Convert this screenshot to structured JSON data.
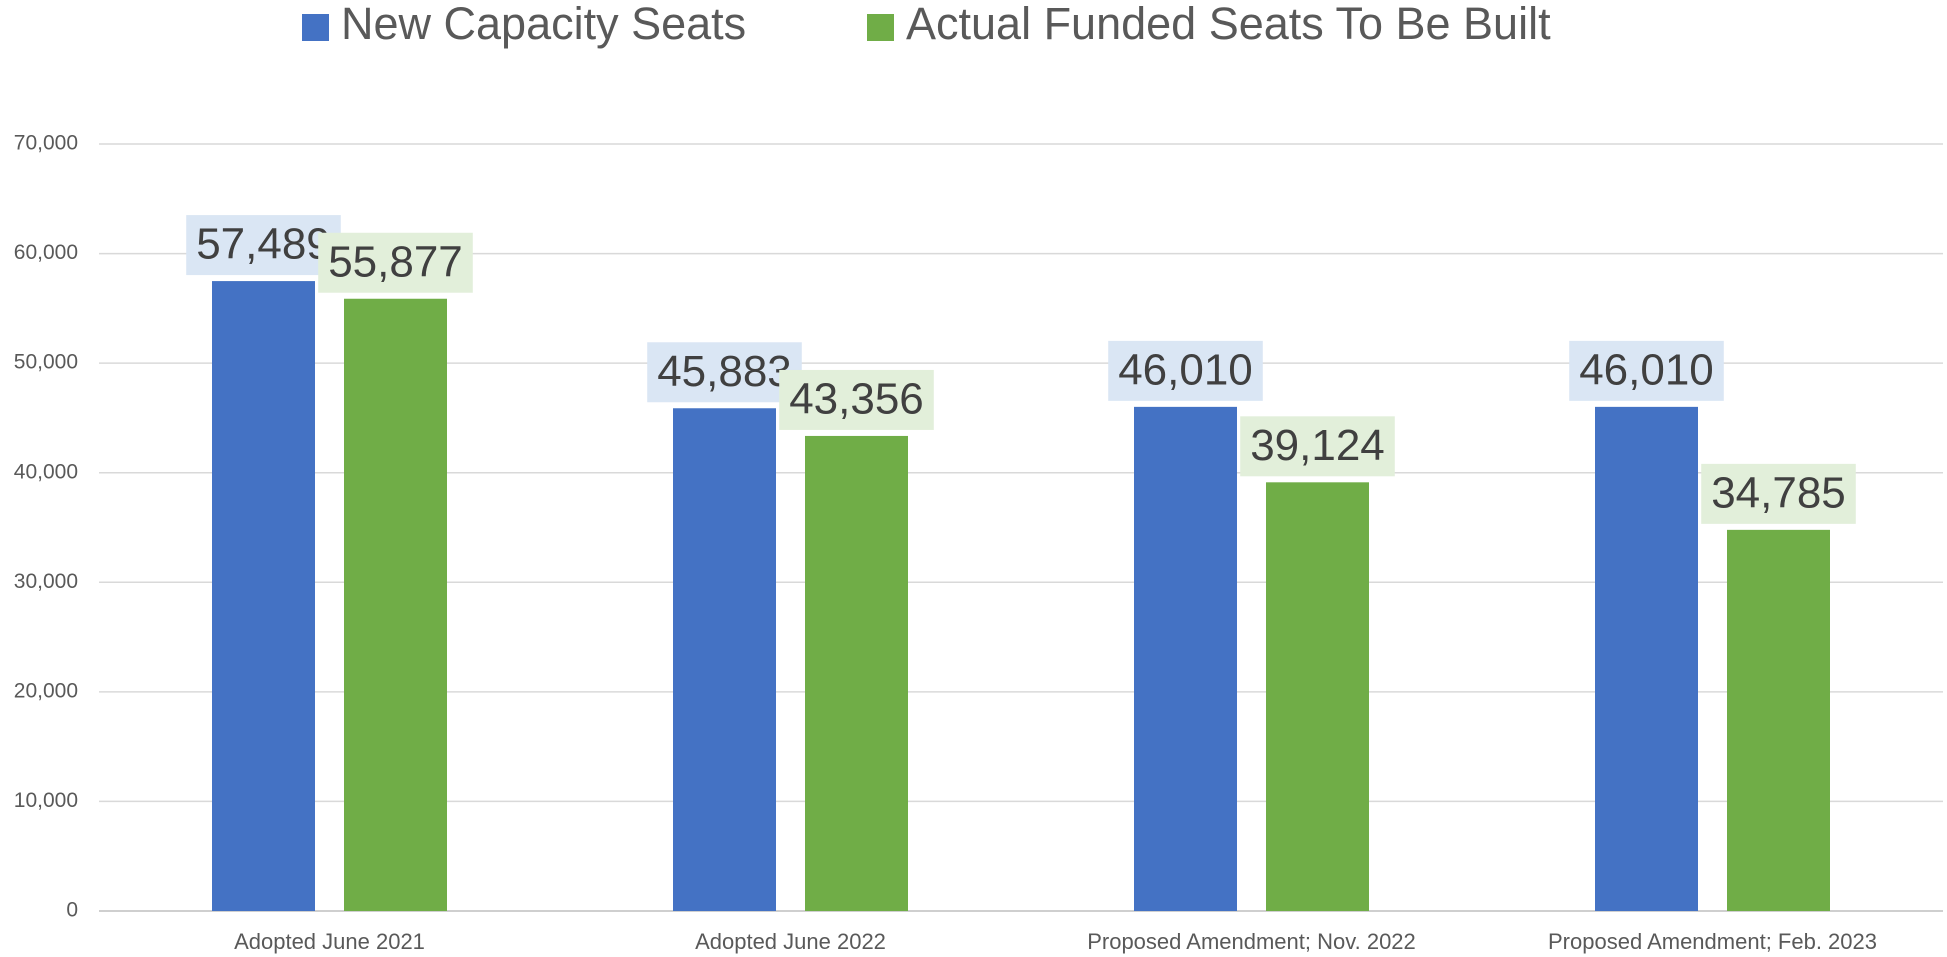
{
  "chart_data": {
    "type": "bar",
    "categories": [
      "Adopted June 2021",
      "Adopted June 2022",
      "Proposed Amendment;  Nov. 2022",
      "Proposed Amendment; Feb. 2023"
    ],
    "series": [
      {
        "name": "New Capacity Seats",
        "color": "#4472c4",
        "label_background": "#dae6f4",
        "values": [
          57489,
          45883,
          46010,
          46010
        ],
        "value_labels": [
          "57,489",
          "45,883",
          "46,010",
          "46,010"
        ]
      },
      {
        "name": "Actual Funded Seats To Be Built",
        "color": "#70ad47",
        "label_background": "#e2efda",
        "values": [
          55877,
          43356,
          39124,
          34785
        ],
        "value_labels": [
          "55,877",
          "43,356",
          "39,124",
          "34,785"
        ]
      }
    ],
    "ylim": [
      0,
      70000
    ],
    "yticks": [
      0,
      {
        "value": 10000,
        "label": "10,000"
      },
      {
        "value": 20000,
        "label": "20,000"
      },
      {
        "value": 30000,
        "label": "30,000"
      },
      {
        "value": 40000,
        "label": "40,000"
      },
      {
        "value": 50000,
        "label": "50,000"
      },
      {
        "value": 60000,
        "label": "60,000"
      },
      {
        "value": 70000,
        "label": "70,000"
      }
    ],
    "grid": true,
    "legend": "top"
  }
}
